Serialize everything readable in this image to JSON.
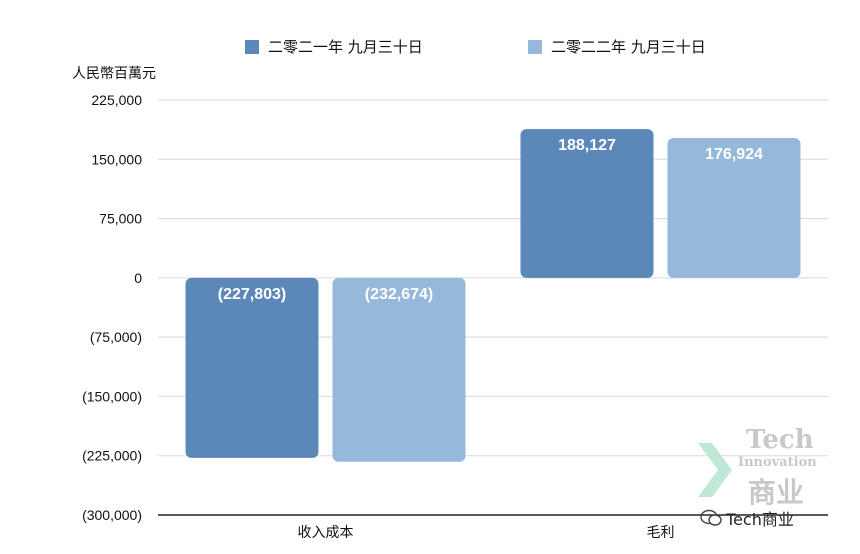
{
  "chart_data": {
    "type": "bar",
    "unit_label": "人民幣百萬元",
    "categories": [
      "收入成本",
      "毛利"
    ],
    "series": [
      {
        "name": "二零二一年 九月三十日",
        "color": "#5b88b8",
        "values": [
          -227803,
          188127
        ],
        "labels": [
          "(227,803)",
          "188,127"
        ]
      },
      {
        "name": "二零二二年 九月三十日",
        "color": "#95b8db",
        "values": [
          -232674,
          176924
        ],
        "labels": [
          "(232,674)",
          "176,924"
        ]
      }
    ],
    "yticks": [
      225000,
      150000,
      75000,
      0,
      -75000,
      -150000,
      -225000,
      -300000
    ],
    "ytick_labels": [
      "225,000",
      "150,000",
      "75,000",
      "0",
      "(75,000)",
      "(150,000)",
      "(225,000)",
      "(300,000)"
    ],
    "ylim": [
      -300000,
      225000
    ],
    "grid": true,
    "legend_position": "top"
  },
  "watermark": {
    "line1": "Tech",
    "line2": "Innovation",
    "line3": "商业",
    "signature": "Tech商业"
  }
}
